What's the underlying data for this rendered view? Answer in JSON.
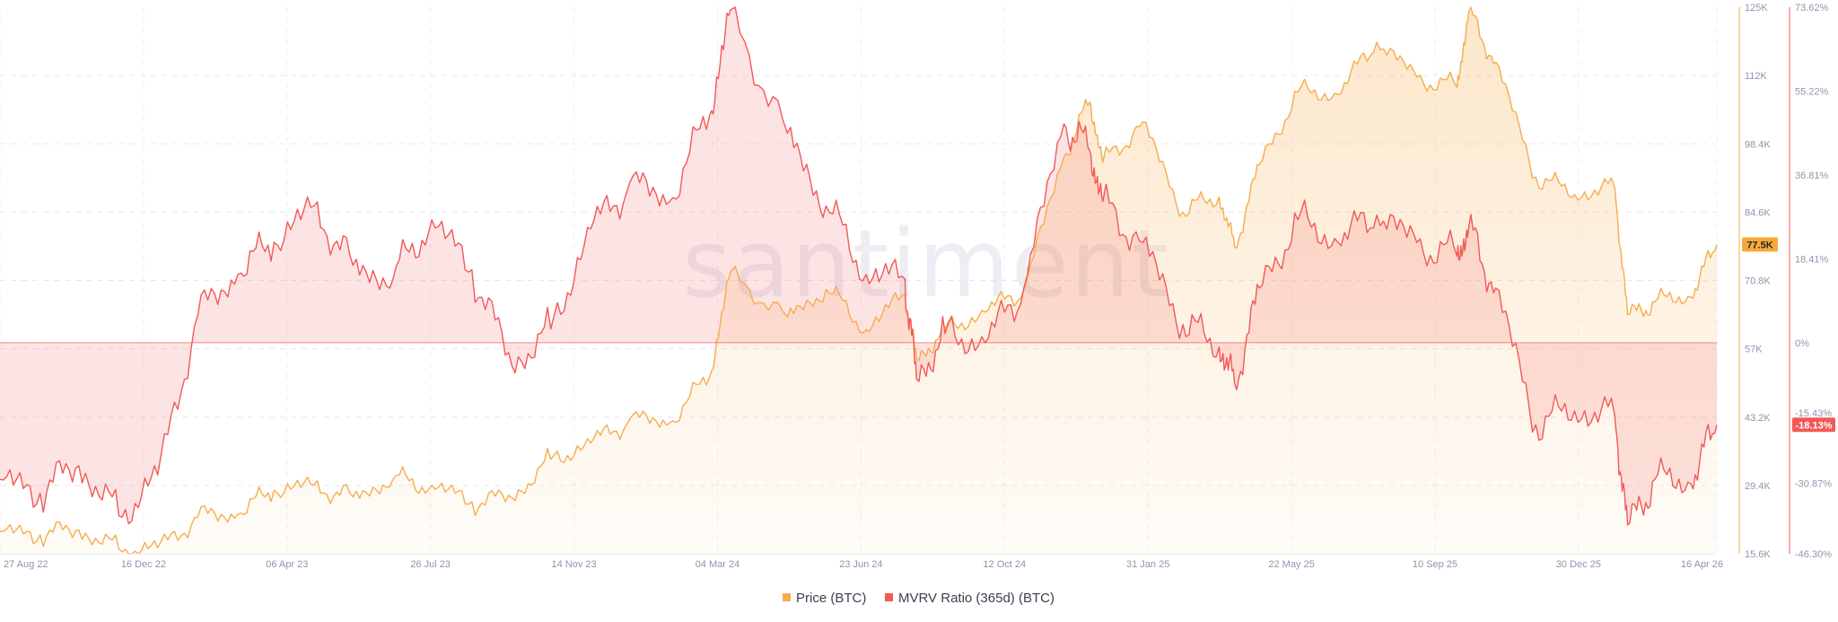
{
  "watermark": "santiment",
  "chart_data": {
    "type": "area",
    "x_dates": [
      "2022-08-27",
      "2022-09-27",
      "2022-10-27",
      "2022-11-27",
      "2022-12-27",
      "2023-01-27",
      "2023-02-27",
      "2023-03-27",
      "2023-04-27",
      "2023-05-27",
      "2023-06-27",
      "2023-07-27",
      "2023-08-27",
      "2023-09-27",
      "2023-10-27",
      "2023-11-27",
      "2023-12-27",
      "2024-01-27",
      "2024-02-27",
      "2024-03-14",
      "2024-04-27",
      "2024-05-27",
      "2024-06-27",
      "2024-07-27",
      "2024-08-05",
      "2024-08-27",
      "2024-09-27",
      "2024-10-27",
      "2024-11-27",
      "2024-12-17",
      "2024-12-27",
      "2025-01-27",
      "2025-02-27",
      "2025-03-27",
      "2025-04-08",
      "2025-04-27",
      "2025-05-27",
      "2025-06-27",
      "2025-07-27",
      "2025-08-27",
      "2025-09-27",
      "2025-10-06",
      "2025-10-27",
      "2025-11-27",
      "2025-12-27",
      "2026-01-27",
      "2026-02-06",
      "2026-02-27",
      "2026-03-27",
      "2026-04-16"
    ],
    "series": [
      {
        "name": "Price (BTC)",
        "axis": "left",
        "color": "#f6ac4d",
        "values": [
          20100,
          19400,
          20300,
          16500,
          16800,
          23000,
          23500,
          28300,
          29400,
          27000,
          30500,
          29300,
          26000,
          26800,
          34500,
          37800,
          42500,
          41800,
          51000,
          72000,
          63000,
          68500,
          60500,
          67500,
          54500,
          60500,
          64000,
          68500,
          95000,
          106000,
          94000,
          102000,
          84000,
          87000,
          77000,
          93500,
          108000,
          107500,
          118000,
          111000,
          109000,
          124000,
          114000,
          91000,
          87500,
          89000,
          63500,
          66000,
          67000,
          77500
        ]
      },
      {
        "name": "MVRV Ratio (365d) (BTC)",
        "axis": "right",
        "color": "#f25858",
        "values": [
          -30,
          -33,
          -27,
          -38,
          -29,
          6,
          15,
          22,
          30,
          17,
          14,
          27,
          16,
          -5,
          3,
          25,
          35,
          31,
          50,
          73,
          46,
          30,
          15,
          14,
          -8,
          2,
          0,
          12,
          48,
          42,
          31,
          22,
          4,
          -1,
          -9,
          12,
          27,
          22,
          28,
          22,
          19,
          25,
          12,
          -18,
          -15,
          -16,
          -40,
          -30,
          -31,
          -18
        ]
      }
    ],
    "y_left_ticks": [
      "125K",
      "112K",
      "98.4K",
      "84.6K",
      "70.8K",
      "57K",
      "43.2K",
      "29.4K",
      "15.6K"
    ],
    "y_right_ticks": [
      "73.62%",
      "55.22%",
      "36.81%",
      "18.41%",
      "0%",
      "-15.43%",
      "-30.87%",
      "-46.30%"
    ],
    "x_ticks": [
      "27 Aug 22",
      "16 Dec 22",
      "06 Apr 23",
      "26 Jul 23",
      "14 Nov 23",
      "04 Mar 24",
      "23 Jun 24",
      "12 Oct 24",
      "31 Jan 25",
      "22 May 25",
      "10 Sep 25",
      "30 Dec 25",
      "16 Apr 26"
    ],
    "ylim_left": [
      15600,
      125000
    ],
    "ylim_right": [
      -46.3,
      73.62
    ],
    "last_values": {
      "price": "77.5K",
      "mvrv": "-18.13%"
    },
    "grid": true,
    "legend_position": "bottom-center"
  },
  "colors": {
    "price": "#f6ac4d",
    "mvrv": "#f25858",
    "price_badge_bg": "#f7a93a",
    "mvrv_badge_bg": "#f25858"
  }
}
